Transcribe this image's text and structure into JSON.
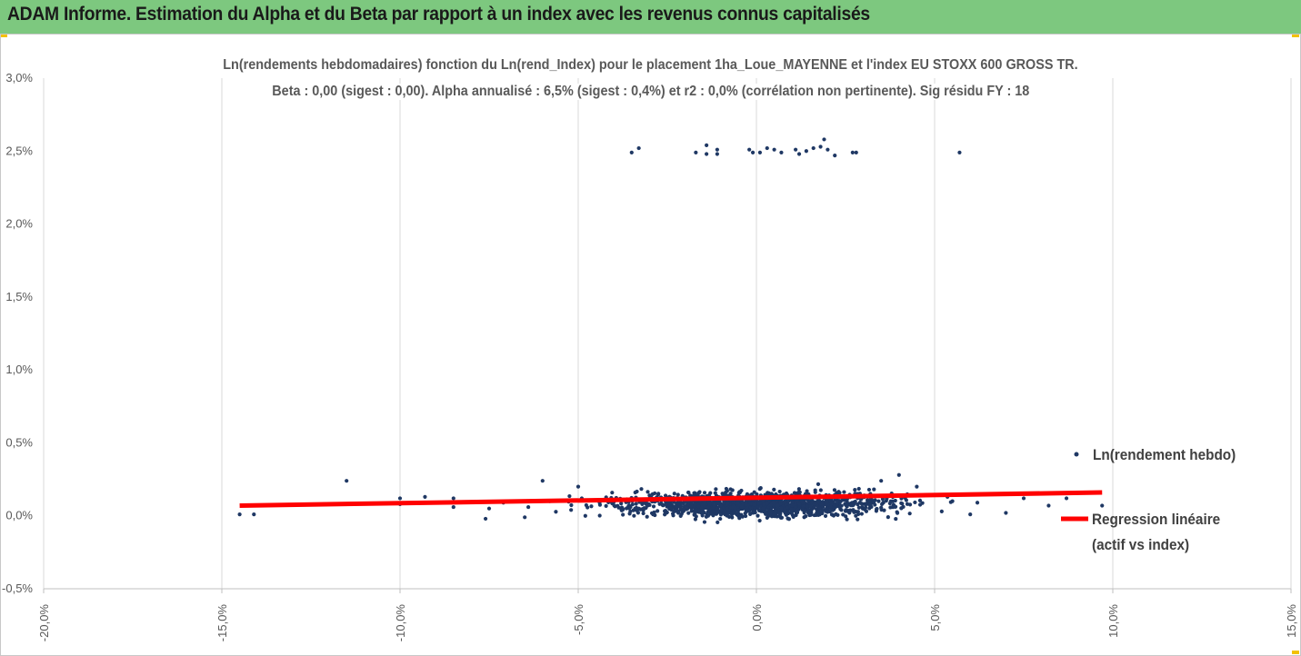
{
  "banner": {
    "title": "ADAM Informe. Estimation du Alpha et du Beta par rapport à un index avec les revenus connus capitalisés"
  },
  "colors": {
    "banner": "#7dc87f",
    "points": "#1f3864",
    "regression": "#ff0000",
    "grid": "#d9d9d9",
    "text": "#595959"
  },
  "chart_data": {
    "type": "scatter",
    "title": "Ln(rendements hebdomadaires) fonction du Ln(rend_Index) pour le placement 1ha_Loue_MAYENNE  et l'index EU STOXX 600 GROSS TR.",
    "subtitle": "Beta : 0,00 (sigest : 0,00). Alpha annualisé : 6,5% (sigest : 0,4%) et r2 : 0,0% (corrélation non pertinente). Sig résidu FY : 18",
    "xlabel": "",
    "ylabel": "",
    "xlim": [
      -0.2,
      0.15
    ],
    "ylim": [
      -0.005,
      0.03
    ],
    "x_ticks": [
      "-20,0%",
      "-15,0%",
      "-10,0%",
      "-5,0%",
      "0,0%",
      "5,0%",
      "10,0%",
      "15,0%"
    ],
    "y_ticks": [
      "-0,5%",
      "0,0%",
      "0,5%",
      "1,0%",
      "1,5%",
      "2,0%",
      "2,5%",
      "3,0%"
    ],
    "grid": "vertical gridlines",
    "legend": "right",
    "series": [
      {
        "name": "Ln(rendement hebdo)",
        "kind": "scatter",
        "points": [
          [
            -0.145,
            0.0001
          ],
          [
            -0.141,
            0.0001
          ],
          [
            -0.115,
            0.0024
          ],
          [
            -0.1,
            0.0012
          ],
          [
            -0.1,
            0.0008
          ],
          [
            -0.093,
            0.0013
          ],
          [
            -0.085,
            0.0006
          ],
          [
            -0.085,
            0.0012
          ],
          [
            -0.076,
            -0.0002
          ],
          [
            -0.075,
            0.0005
          ],
          [
            -0.071,
            0.0009
          ],
          [
            -0.065,
            -0.0001
          ],
          [
            -0.064,
            0.0006
          ],
          [
            -0.06,
            0.0024
          ],
          [
            -0.058,
            0.001
          ],
          [
            -0.052,
            0.0004
          ],
          [
            -0.05,
            0.002
          ],
          [
            -0.049,
            0.0012
          ],
          [
            -0.048,
            0.0
          ],
          [
            -0.044,
            0.0009
          ],
          [
            -0.033,
            0.0005
          ],
          [
            -0.034,
            0.0016
          ],
          [
            -0.029,
            0.0001
          ],
          [
            -0.03,
            0.0014
          ],
          [
            0.035,
            0.0024
          ],
          [
            0.04,
            0.0028
          ],
          [
            0.045,
            0.002
          ],
          [
            0.047,
            0.0014
          ],
          [
            0.052,
            0.0003
          ],
          [
            0.055,
            0.001
          ],
          [
            0.06,
            0.0001
          ],
          [
            0.062,
            0.0009
          ],
          [
            0.07,
            0.0002
          ],
          [
            0.075,
            0.0012
          ],
          [
            0.082,
            0.0007
          ],
          [
            0.087,
            0.0012
          ],
          [
            0.097,
            0.0007
          ],
          [
            -0.035,
            0.0249
          ],
          [
            -0.033,
            0.0252
          ],
          [
            -0.017,
            0.0249
          ],
          [
            -0.014,
            0.0254
          ],
          [
            -0.014,
            0.0248
          ],
          [
            -0.011,
            0.0251
          ],
          [
            -0.011,
            0.0248
          ],
          [
            -0.002,
            0.0251
          ],
          [
            -0.001,
            0.0249
          ],
          [
            0.001,
            0.0249
          ],
          [
            0.003,
            0.0252
          ],
          [
            0.005,
            0.0251
          ],
          [
            0.007,
            0.0249
          ],
          [
            0.011,
            0.0251
          ],
          [
            0.012,
            0.0248
          ],
          [
            0.014,
            0.025
          ],
          [
            0.016,
            0.0252
          ],
          [
            0.018,
            0.0253
          ],
          [
            0.019,
            0.0258
          ],
          [
            0.02,
            0.0251
          ],
          [
            0.022,
            0.0247
          ],
          [
            0.027,
            0.0249
          ],
          [
            0.028,
            0.0249
          ],
          [
            0.057,
            0.0249
          ]
        ],
        "cluster": {
          "description_free": true,
          "count": 1400,
          "x_mean": 0.0,
          "x_spread": 0.025,
          "y_mean": 0.0008,
          "y_spread": 0.0005
        }
      },
      {
        "name": "Regression linéaire (actif vs index)",
        "kind": "line",
        "points": [
          [
            -0.145,
            0.0007
          ],
          [
            0.097,
            0.0016
          ]
        ]
      }
    ]
  },
  "legend": {
    "scatter_label": "Ln(rendement hebdo)",
    "line_label_1": "Regression linéaire",
    "line_label_2": "(actif vs index)"
  }
}
